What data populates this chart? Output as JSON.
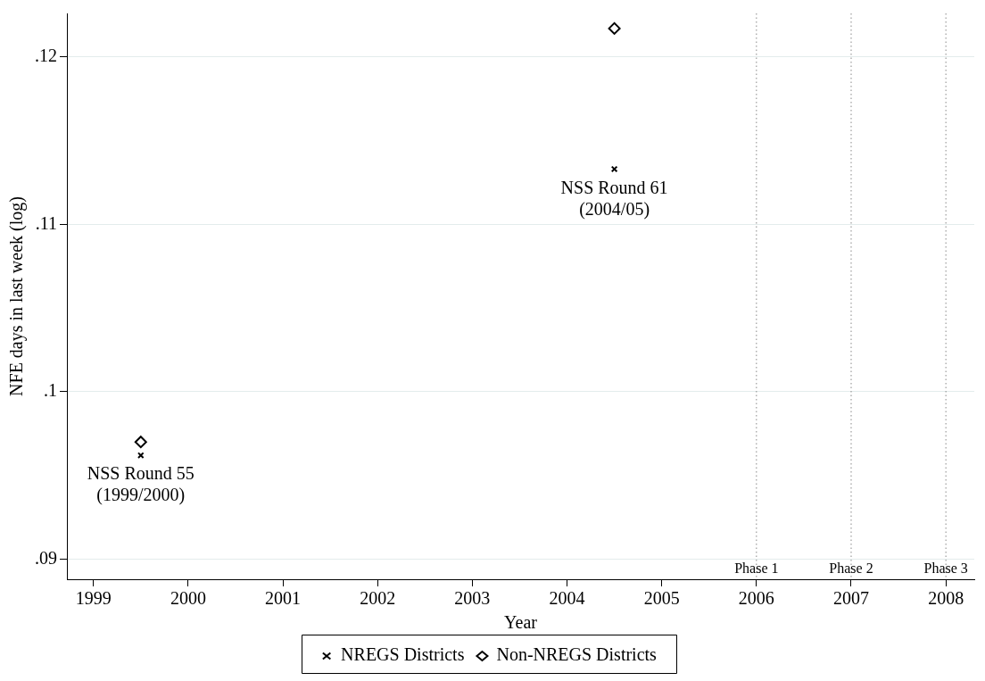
{
  "chart_data": {
    "type": "scatter",
    "xlabel": "Year",
    "ylabel": "NFE days in last week (log)",
    "series": [
      {
        "name": "NREGS Districts",
        "color": "#000000",
        "marker": "cross",
        "values": [
          0.0962,
          0.1133
        ]
      },
      {
        "name": "Non-NREGS Districts",
        "color": "#000000",
        "marker": "diamond",
        "values": [
          0.097,
          0.1217
        ]
      }
    ],
    "x": [
      1999.5,
      2004.5
    ],
    "xlim": [
      1998.72,
      2008.3
    ],
    "xticks": [
      1999,
      2000,
      2001,
      2002,
      2003,
      2004,
      2005,
      2006,
      2007,
      2008
    ],
    "ylim": [
      0.0888,
      0.1226
    ],
    "yticks": [
      {
        "value": 0.09,
        "label": ".09"
      },
      {
        "value": 0.1,
        "label": ".1"
      },
      {
        "value": 0.11,
        "label": ".11"
      },
      {
        "value": 0.12,
        "label": ".12"
      }
    ],
    "grid": "y",
    "legend": "bottom",
    "ref_lines": [
      {
        "axis": "x",
        "value": 2006,
        "label": "Phase 1",
        "line_style": "dotted",
        "color": "#888888"
      },
      {
        "axis": "x",
        "value": 2007,
        "label": "Phase 2",
        "line_style": "dotted",
        "color": "#888888"
      },
      {
        "axis": "x",
        "value": 2008,
        "label": "Phase 3",
        "line_style": "dotted",
        "color": "#888888"
      }
    ],
    "annotations": [
      {
        "text": "NSS Round 55\n(1999/2000)",
        "x": 1999.5,
        "y": 0.0962
      },
      {
        "text": "NSS Round 61\n(2004/05)",
        "x": 2004.5,
        "y": 0.1133
      }
    ]
  }
}
